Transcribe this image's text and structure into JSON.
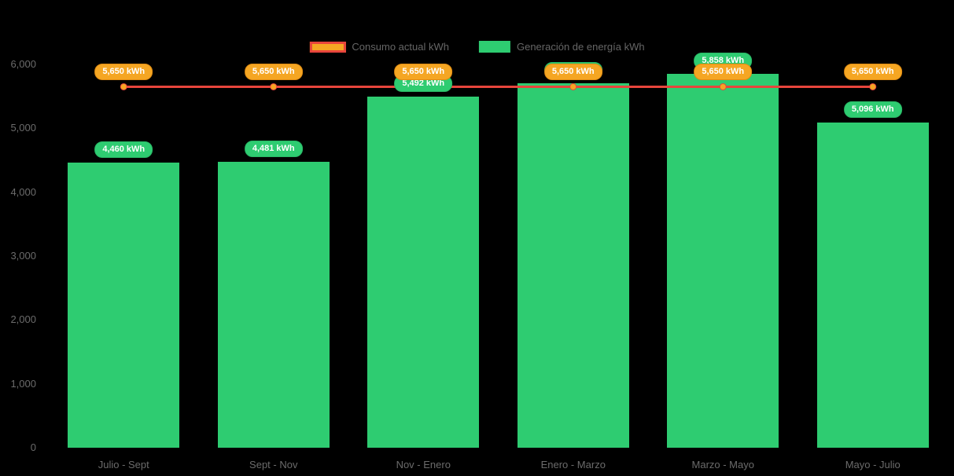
{
  "legend": {
    "consumption_label": "Consumo actual kWh",
    "generation_label": "Generación de energía kWh"
  },
  "colors": {
    "background": "#000000",
    "generation_green": "#2ECC71",
    "consumption_orange": "#F5A623",
    "consumption_line_red": "#E8453C",
    "axis_text": "#6B6B6B",
    "pill_text": "#FFFFFF"
  },
  "chart_data": {
    "type": "bar",
    "title": "",
    "xlabel": "",
    "ylabel": "",
    "categories": [
      "Julio - Sept",
      "Sept - Nov",
      "Nov - Enero",
      "Enero - Marzo",
      "Marzo - Mayo",
      "Mayo - Julio"
    ],
    "series": [
      {
        "name": "Consumo actual kWh",
        "type": "line",
        "color": "#E8453C",
        "marker_color": "#F5A623",
        "values": [
          5650,
          5650,
          5650,
          5650,
          5650,
          5650
        ],
        "labels": [
          "5,650 kWh",
          "5,650 kWh",
          "5,650 kWh",
          "5,650 kWh",
          "5,650 kWh",
          "5,650 kWh"
        ]
      },
      {
        "name": "Generación de energía kWh",
        "type": "bar",
        "color": "#2ECC71",
        "values": [
          4460,
          4481,
          5492,
          5705,
          5858,
          5096
        ],
        "labels": [
          "4,460 kWh",
          "4,481 kWh",
          "5,492 kWh",
          "5,705 kWh",
          "5,858 kWh",
          "5,096 kWh"
        ]
      }
    ],
    "ylim": [
      0,
      6000
    ],
    "yticks": {
      "values": [
        0,
        1000,
        2000,
        3000,
        4000,
        5000,
        6000
      ],
      "labels": [
        "0",
        "1,000",
        "2,000",
        "3,000",
        "4,000",
        "5,000",
        "6,000"
      ]
    },
    "grid": false,
    "legend_position": "top"
  }
}
